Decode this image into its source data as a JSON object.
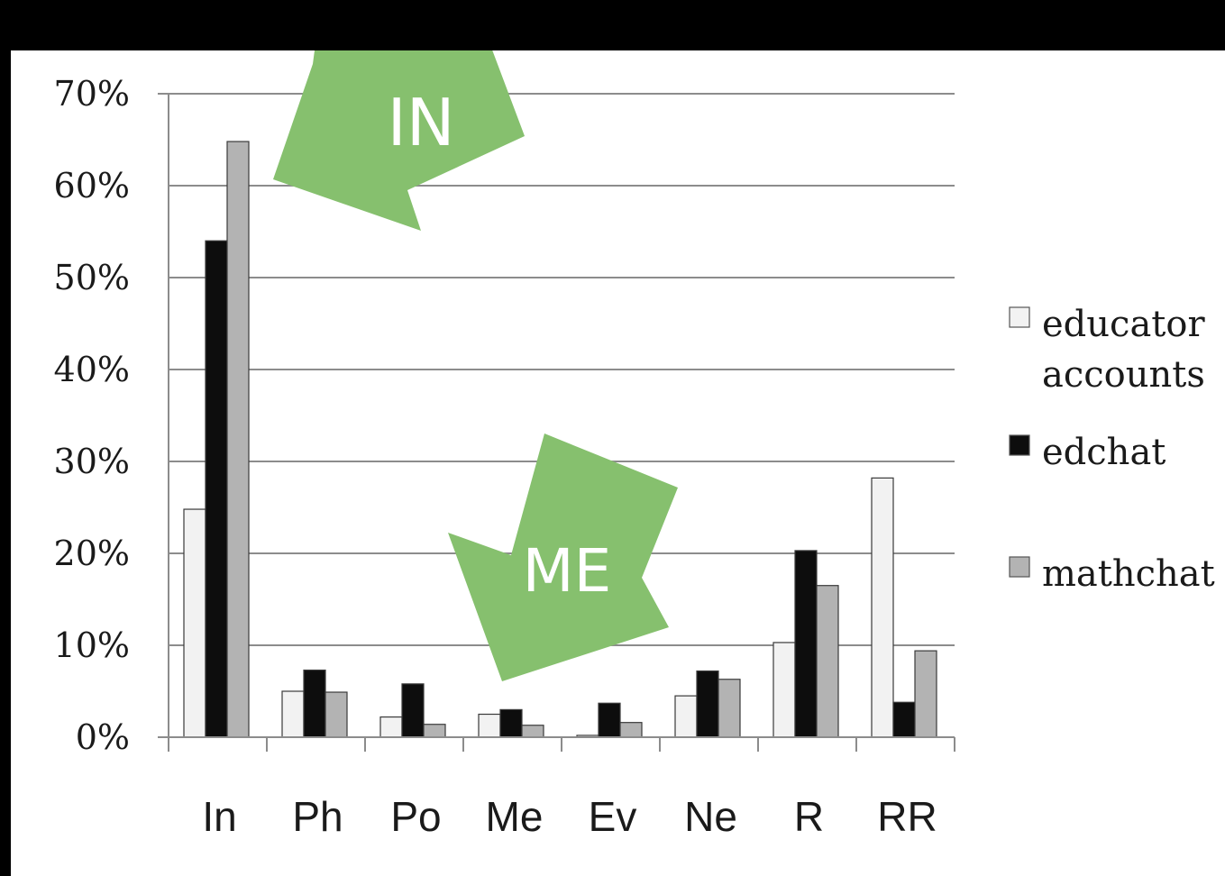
{
  "colors": {
    "background": "#000000",
    "plot_background": "#ffffff",
    "gridline": "#8c8c8c",
    "arrow": "#86c06e",
    "series": [
      "#f2f2f2",
      "#0d0d0d",
      "#b3b3b3"
    ]
  },
  "annotations": [
    {
      "text": "IN",
      "shape": "green-arrow-pointing-down-left",
      "target_category": "In"
    },
    {
      "text": "ME",
      "shape": "green-arrow-pointing-down-left",
      "target_category": "Me"
    }
  ],
  "chart_data": {
    "type": "bar",
    "categories": [
      "In",
      "Ph",
      "Po",
      "Me",
      "Ev",
      "Ne",
      "R",
      "RR"
    ],
    "series": [
      {
        "name": "educator accounts",
        "values": [
          24.8,
          5.0,
          2.2,
          2.5,
          0.2,
          4.5,
          10.3,
          28.2
        ]
      },
      {
        "name": "edchat",
        "values": [
          54.0,
          7.3,
          5.8,
          3.0,
          3.7,
          7.2,
          20.3,
          3.8
        ]
      },
      {
        "name": "mathchat",
        "values": [
          64.8,
          4.9,
          1.4,
          1.3,
          1.6,
          6.3,
          16.5,
          9.4
        ]
      }
    ],
    "legend_lines": [
      [
        "educator",
        "accounts"
      ],
      [
        "edchat"
      ],
      [
        "mathchat"
      ]
    ],
    "y_ticks": [
      "0%",
      "10%",
      "20%",
      "30%",
      "40%",
      "50%",
      "60%",
      "70%"
    ],
    "ylim": [
      0,
      70
    ],
    "y_unit": "%",
    "grid": true,
    "legend_position": "right",
    "title": "",
    "xlabel": "",
    "ylabel": ""
  }
}
